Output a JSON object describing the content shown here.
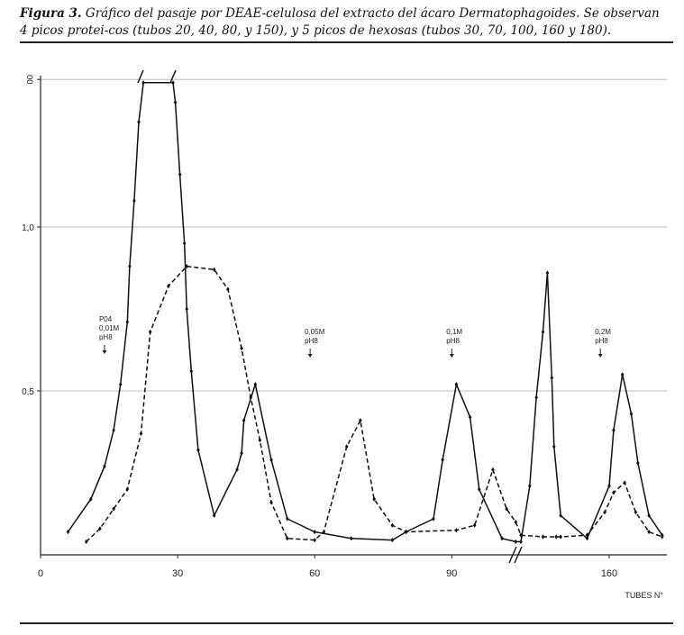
{
  "caption": {
    "label": "Figura 3.",
    "text": " Gráfico del pasaje por DEAE-celulosa del extracto del ácaro Dermatophagoides. Se observan 4 picos protei-cos (tubos 20, 40, 80, y 150), y 5 picos de hexosas (tubos 30, 70, 100, 160 y 180)."
  },
  "chart_data": {
    "type": "line",
    "title": "",
    "xlabel": "TUBES N°",
    "ylabel": "",
    "x_ticks": [
      "0",
      "30",
      "60",
      "90",
      "160"
    ],
    "y_ticks": [
      "0,5",
      "1,0",
      "00"
    ],
    "ylim": [
      0,
      1.45
    ],
    "grid": "horizontal",
    "axis_break": "x between 100 and 140",
    "legend": "none",
    "series": [
      {
        "style": "solid",
        "color": "#111111",
        "points": [
          [
            6,
            0.07
          ],
          [
            11,
            0.17
          ],
          [
            14,
            0.27
          ],
          [
            16,
            0.38
          ],
          [
            17.5,
            0.52
          ],
          [
            19,
            0.71
          ],
          [
            19.5,
            0.88
          ],
          [
            20.5,
            1.08
          ],
          [
            21.5,
            1.32
          ],
          [
            22.5,
            1.44
          ],
          [
            29,
            1.44
          ],
          [
            29.5,
            1.38
          ],
          [
            30.5,
            1.16
          ],
          [
            31.5,
            0.95
          ],
          [
            32,
            0.75
          ],
          [
            33,
            0.56
          ],
          [
            34.5,
            0.32
          ],
          [
            38,
            0.12
          ],
          [
            43,
            0.26
          ],
          [
            44,
            0.31
          ],
          [
            44.5,
            0.41
          ],
          [
            47,
            0.52
          ],
          [
            50.5,
            0.29
          ],
          [
            54,
            0.11
          ],
          [
            60,
            0.07
          ],
          [
            68,
            0.05
          ],
          [
            77,
            0.045
          ],
          [
            80,
            0.07
          ],
          [
            86,
            0.11
          ],
          [
            88,
            0.29
          ],
          [
            91,
            0.52
          ],
          [
            94,
            0.42
          ],
          [
            96,
            0.2
          ],
          [
            101,
            0.05
          ],
          [
            104,
            0.04
          ],
          [
            140,
            0.04
          ],
          [
            142,
            0.21
          ],
          [
            143.5,
            0.48
          ],
          [
            145,
            0.68
          ],
          [
            146,
            0.86
          ],
          [
            147,
            0.54
          ],
          [
            147.5,
            0.33
          ],
          [
            149,
            0.12
          ],
          [
            155,
            0.05
          ],
          [
            160,
            0.21
          ],
          [
            161,
            0.38
          ],
          [
            163,
            0.55
          ],
          [
            165,
            0.43
          ],
          [
            166.5,
            0.28
          ],
          [
            169,
            0.12
          ],
          [
            172,
            0.06
          ]
        ]
      },
      {
        "style": "dashed",
        "color": "#111111",
        "points": [
          [
            10,
            0.04
          ],
          [
            13,
            0.08
          ],
          [
            16,
            0.14
          ],
          [
            19,
            0.2
          ],
          [
            22,
            0.37
          ],
          [
            24,
            0.68
          ],
          [
            28,
            0.82
          ],
          [
            32,
            0.88
          ],
          [
            38,
            0.87
          ],
          [
            41,
            0.81
          ],
          [
            44,
            0.63
          ],
          [
            46,
            0.48
          ],
          [
            48,
            0.35
          ],
          [
            50.5,
            0.16
          ],
          [
            54,
            0.05
          ],
          [
            60,
            0.045
          ],
          [
            62,
            0.07
          ],
          [
            67,
            0.33
          ],
          [
            70,
            0.41
          ],
          [
            73,
            0.17
          ],
          [
            77,
            0.09
          ],
          [
            80,
            0.07
          ],
          [
            91,
            0.075
          ],
          [
            95,
            0.09
          ],
          [
            99,
            0.26
          ],
          [
            102,
            0.14
          ],
          [
            104,
            0.1
          ],
          [
            140,
            0.06
          ],
          [
            145,
            0.055
          ],
          [
            148,
            0.055
          ],
          [
            149,
            0.055
          ],
          [
            155,
            0.06
          ],
          [
            159,
            0.13
          ],
          [
            161,
            0.19
          ],
          [
            163.5,
            0.22
          ],
          [
            166,
            0.13
          ],
          [
            169,
            0.07
          ],
          [
            172,
            0.055
          ]
        ]
      }
    ],
    "annotations": [
      {
        "lines": [
          "P04",
          "0,01M",
          "pH8"
        ],
        "x": 14
      },
      {
        "lines": [
          "0,05M",
          "pH8"
        ],
        "x": 59
      },
      {
        "lines": [
          "0,1M",
          "pH8"
        ],
        "x": 90
      },
      {
        "lines": [
          "0,2M",
          "pH8"
        ],
        "x": 158
      }
    ]
  }
}
